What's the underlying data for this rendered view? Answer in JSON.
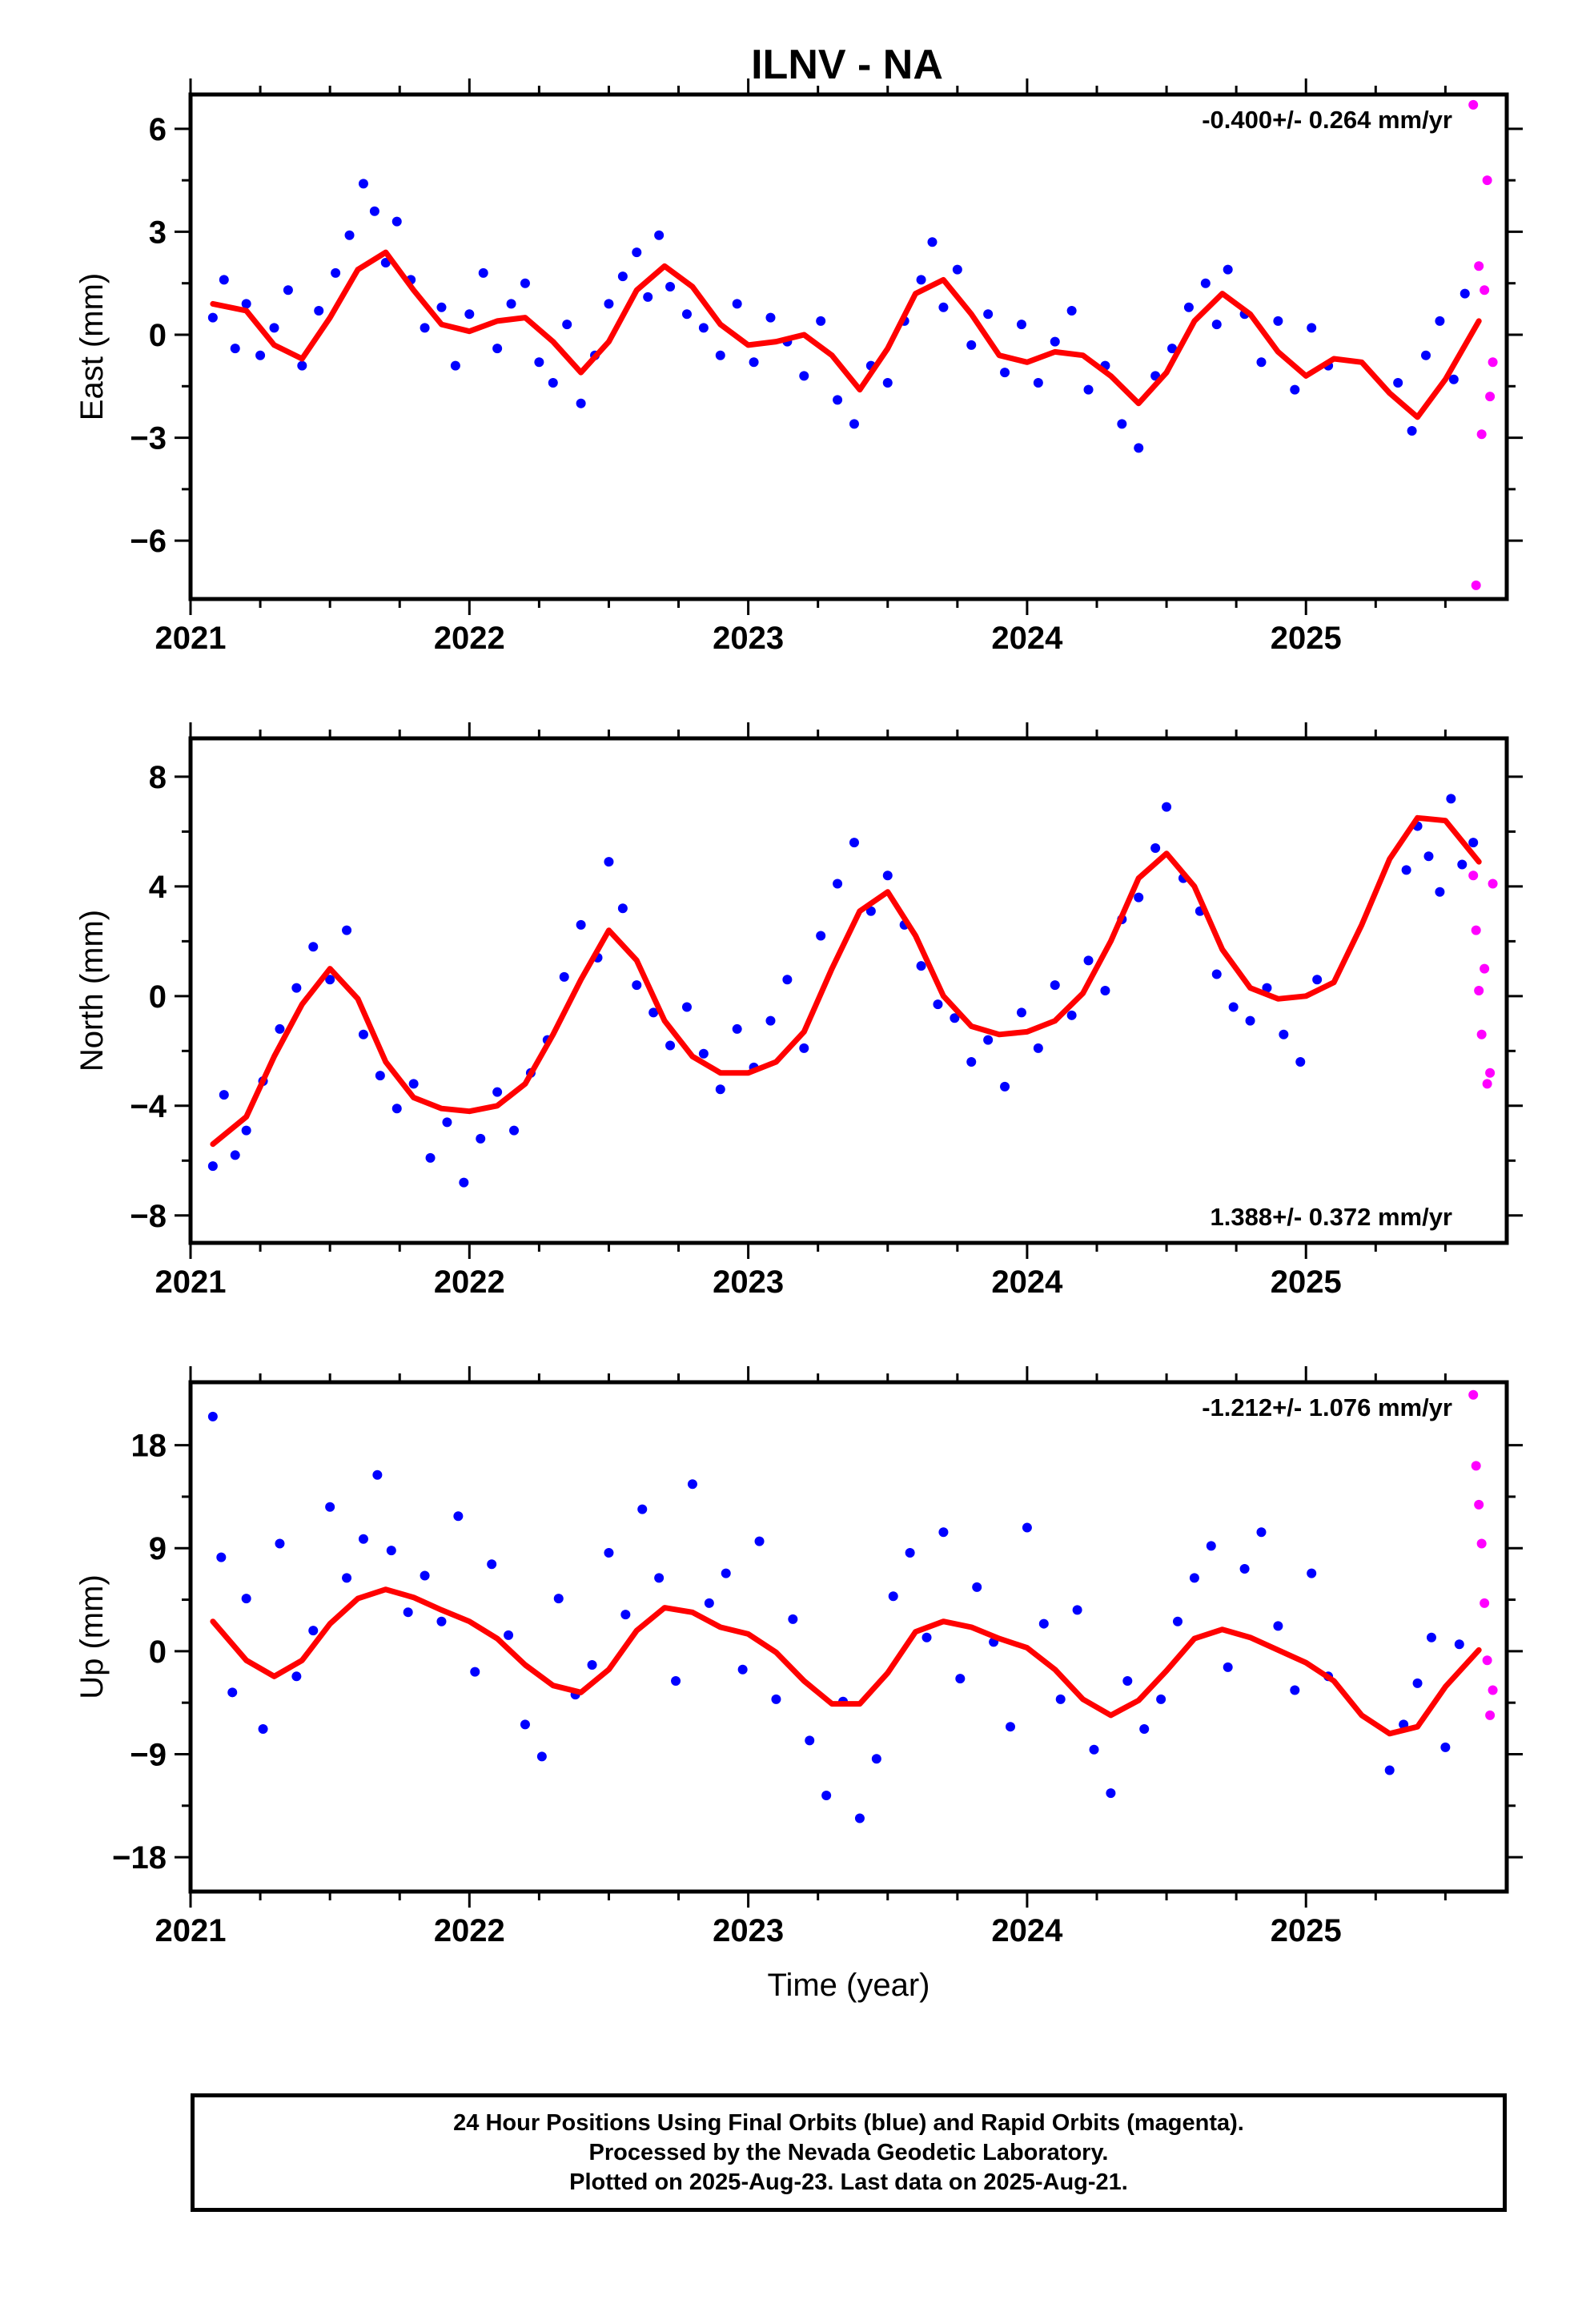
{
  "title": "ILNV - NA",
  "colors": {
    "final": "#0000ff",
    "rapid": "#ff00ff",
    "model": "#ff0000",
    "frame": "#000000"
  },
  "footer": {
    "line1": "24 Hour Positions Using Final Orbits (blue) and Rapid Orbits (magenta).",
    "line2": "Processed by the Nevada Geodetic Laboratory.",
    "line3": "Plotted on 2025-Aug-23. Last data on 2025-Aug-21."
  },
  "chart_data": [
    {
      "type": "scatter",
      "ylabel": "East (mm)",
      "xlabel": "",
      "rate_text": "-0.400+/- 0.264 mm/yr",
      "rate_position": "top-right",
      "xlim": [
        2021.0,
        2025.72
      ],
      "ylim": [
        -7.7,
        7.0
      ],
      "xticks": [
        2021,
        2022,
        2023,
        2024,
        2025
      ],
      "xtick_labels": [
        "2021",
        "2022",
        "2023",
        "2024",
        "2025"
      ],
      "yticks": [
        6,
        3,
        0,
        -3,
        -6
      ],
      "ytick_labels": [
        "6",
        "3",
        "0",
        "−3",
        "−6"
      ],
      "grid": false,
      "model": {
        "type": "line",
        "x": [
          2021.08,
          2021.2,
          2021.3,
          2021.4,
          2021.5,
          2021.6,
          2021.7,
          2021.8,
          2021.9,
          2022.0,
          2022.1,
          2022.2,
          2022.3,
          2022.4,
          2022.5,
          2022.6,
          2022.7,
          2022.8,
          2022.9,
          2023.0,
          2023.1,
          2023.2,
          2023.3,
          2023.4,
          2023.5,
          2023.6,
          2023.7,
          2023.8,
          2023.9,
          2024.0,
          2024.1,
          2024.2,
          2024.3,
          2024.4,
          2024.5,
          2024.6,
          2024.7,
          2024.8,
          2024.9,
          2025.0,
          2025.1,
          2025.2,
          2025.3,
          2025.4,
          2025.5,
          2025.62
        ],
        "y": [
          0.9,
          0.7,
          -0.3,
          -0.7,
          0.5,
          1.9,
          2.4,
          1.3,
          0.3,
          0.1,
          0.4,
          0.5,
          -0.2,
          -1.1,
          -0.2,
          1.3,
          2.0,
          1.4,
          0.3,
          -0.3,
          -0.2,
          0.0,
          -0.6,
          -1.6,
          -0.4,
          1.2,
          1.6,
          0.6,
          -0.6,
          -0.8,
          -0.5,
          -0.6,
          -1.2,
          -2.0,
          -1.1,
          0.4,
          1.2,
          0.6,
          -0.5,
          -1.2,
          -0.7,
          -0.8,
          -1.7,
          -2.4,
          -1.3,
          0.4
        ]
      },
      "final": {
        "x": [
          2021.08,
          2021.12,
          2021.16,
          2021.2,
          2021.25,
          2021.3,
          2021.35,
          2021.4,
          2021.46,
          2021.52,
          2021.57,
          2021.62,
          2021.66,
          2021.7,
          2021.74,
          2021.79,
          2021.84,
          2021.9,
          2021.95,
          2022.0,
          2022.05,
          2022.1,
          2022.15,
          2022.2,
          2022.25,
          2022.3,
          2022.35,
          2022.4,
          2022.45,
          2022.5,
          2022.55,
          2022.6,
          2022.64,
          2022.68,
          2022.72,
          2022.78,
          2022.84,
          2022.9,
          2022.96,
          2023.02,
          2023.08,
          2023.14,
          2023.2,
          2023.26,
          2023.32,
          2023.38,
          2023.44,
          2023.5,
          2023.56,
          2023.62,
          2023.66,
          2023.7,
          2023.75,
          2023.8,
          2023.86,
          2023.92,
          2023.98,
          2024.04,
          2024.1,
          2024.16,
          2024.22,
          2024.28,
          2024.34,
          2024.4,
          2024.46,
          2024.52,
          2024.58,
          2024.64,
          2024.68,
          2024.72,
          2024.78,
          2024.84,
          2024.9,
          2024.96,
          2025.02,
          2025.08,
          2025.33,
          2025.38,
          2025.43,
          2025.48,
          2025.53,
          2025.57
        ],
        "y": [
          0.5,
          1.6,
          -0.4,
          0.9,
          -0.6,
          0.2,
          1.3,
          -0.9,
          0.7,
          1.8,
          2.9,
          4.4,
          3.6,
          2.1,
          3.3,
          1.6,
          0.2,
          0.8,
          -0.9,
          0.6,
          1.8,
          -0.4,
          0.9,
          1.5,
          -0.8,
          -1.4,
          0.3,
          -2.0,
          -0.6,
          0.9,
          1.7,
          2.4,
          1.1,
          2.9,
          1.4,
          0.6,
          0.2,
          -0.6,
          0.9,
          -0.8,
          0.5,
          -0.2,
          -1.2,
          0.4,
          -1.9,
          -2.6,
          -0.9,
          -1.4,
          0.4,
          1.6,
          2.7,
          0.8,
          1.9,
          -0.3,
          0.6,
          -1.1,
          0.3,
          -1.4,
          -0.2,
          0.7,
          -1.6,
          -0.9,
          -2.6,
          -3.3,
          -1.2,
          -0.4,
          0.8,
          1.5,
          0.3,
          1.9,
          0.6,
          -0.8,
          0.4,
          -1.6,
          0.2,
          -0.9,
          -1.4,
          -2.8,
          -0.6,
          0.4,
          -1.3,
          1.2
        ]
      },
      "rapid": {
        "x": [
          2025.6,
          2025.61,
          2025.62,
          2025.63,
          2025.64,
          2025.65,
          2025.66,
          2025.67
        ],
        "y": [
          6.7,
          -7.3,
          2.0,
          -2.9,
          1.3,
          4.5,
          -1.8,
          -0.8
        ]
      }
    },
    {
      "type": "scatter",
      "ylabel": "North (mm)",
      "xlabel": "",
      "rate_text": "1.388+/- 0.372 mm/yr",
      "rate_position": "bottom-right",
      "xlim": [
        2021.0,
        2025.72
      ],
      "ylim": [
        -9.0,
        9.4
      ],
      "xticks": [
        2021,
        2022,
        2023,
        2024,
        2025
      ],
      "xtick_labels": [
        "2021",
        "2022",
        "2023",
        "2024",
        "2025"
      ],
      "yticks": [
        8,
        4,
        0,
        -4,
        -8
      ],
      "ytick_labels": [
        "8",
        "4",
        "0",
        "−4",
        "−8"
      ],
      "grid": false,
      "model": {
        "type": "line",
        "x": [
          2021.08,
          2021.2,
          2021.3,
          2021.4,
          2021.5,
          2021.6,
          2021.7,
          2021.8,
          2021.9,
          2022.0,
          2022.1,
          2022.2,
          2022.3,
          2022.4,
          2022.5,
          2022.6,
          2022.7,
          2022.8,
          2022.9,
          2023.0,
          2023.1,
          2023.2,
          2023.3,
          2023.4,
          2023.5,
          2023.6,
          2023.7,
          2023.8,
          2023.9,
          2024.0,
          2024.1,
          2024.2,
          2024.3,
          2024.4,
          2024.5,
          2024.6,
          2024.7,
          2024.8,
          2024.9,
          2025.0,
          2025.1,
          2025.2,
          2025.3,
          2025.4,
          2025.5,
          2025.62
        ],
        "y": [
          -5.4,
          -4.4,
          -2.2,
          -0.3,
          1.0,
          -0.1,
          -2.4,
          -3.7,
          -4.1,
          -4.2,
          -4.0,
          -3.2,
          -1.4,
          0.6,
          2.4,
          1.3,
          -0.9,
          -2.2,
          -2.8,
          -2.8,
          -2.4,
          -1.3,
          1.0,
          3.1,
          3.8,
          2.2,
          0.0,
          -1.1,
          -1.4,
          -1.3,
          -0.9,
          0.1,
          2.0,
          4.3,
          5.2,
          4.0,
          1.7,
          0.3,
          -0.1,
          0.0,
          0.5,
          2.6,
          5.0,
          6.5,
          6.4,
          4.9
        ]
      },
      "final": {
        "x": [
          2021.08,
          2021.12,
          2021.16,
          2021.2,
          2021.26,
          2021.32,
          2021.38,
          2021.44,
          2021.5,
          2021.56,
          2021.62,
          2021.68,
          2021.74,
          2021.8,
          2021.86,
          2021.92,
          2021.98,
          2022.04,
          2022.1,
          2022.16,
          2022.22,
          2022.28,
          2022.34,
          2022.4,
          2022.46,
          2022.5,
          2022.55,
          2022.6,
          2022.66,
          2022.72,
          2022.78,
          2022.84,
          2022.9,
          2022.96,
          2023.02,
          2023.08,
          2023.14,
          2023.2,
          2023.26,
          2023.32,
          2023.38,
          2023.44,
          2023.5,
          2023.56,
          2023.62,
          2023.68,
          2023.74,
          2023.8,
          2023.86,
          2023.92,
          2023.98,
          2024.04,
          2024.1,
          2024.16,
          2024.22,
          2024.28,
          2024.34,
          2024.4,
          2024.46,
          2024.5,
          2024.56,
          2024.62,
          2024.68,
          2024.74,
          2024.8,
          2024.86,
          2024.92,
          2024.98,
          2025.04,
          2025.36,
          2025.4,
          2025.44,
          2025.48,
          2025.52,
          2025.56,
          2025.6
        ],
        "y": [
          -6.2,
          -3.6,
          -5.8,
          -4.9,
          -3.1,
          -1.2,
          0.3,
          1.8,
          0.6,
          2.4,
          -1.4,
          -2.9,
          -4.1,
          -3.2,
          -5.9,
          -4.6,
          -6.8,
          -5.2,
          -3.5,
          -4.9,
          -2.8,
          -1.6,
          0.7,
          2.6,
          1.4,
          4.9,
          3.2,
          0.4,
          -0.6,
          -1.8,
          -0.4,
          -2.1,
          -3.4,
          -1.2,
          -2.6,
          -0.9,
          0.6,
          -1.9,
          2.2,
          4.1,
          5.6,
          3.1,
          4.4,
          2.6,
          1.1,
          -0.3,
          -0.8,
          -2.4,
          -1.6,
          -3.3,
          -0.6,
          -1.9,
          0.4,
          -0.7,
          1.3,
          0.2,
          2.8,
          3.6,
          5.4,
          6.9,
          4.3,
          3.1,
          0.8,
          -0.4,
          -0.9,
          0.3,
          -1.4,
          -2.4,
          0.6,
          4.6,
          6.2,
          5.1,
          3.8,
          7.2,
          4.8,
          5.6
        ]
      },
      "rapid": {
        "x": [
          2025.6,
          2025.61,
          2025.62,
          2025.63,
          2025.64,
          2025.65,
          2025.66,
          2025.67
        ],
        "y": [
          4.4,
          2.4,
          0.2,
          -1.4,
          1.0,
          -3.2,
          -2.8,
          4.1
        ]
      }
    },
    {
      "type": "scatter",
      "ylabel": "Up (mm)",
      "xlabel": "Time (year)",
      "rate_text": "-1.212+/- 1.076 mm/yr",
      "rate_position": "top-right",
      "xlim": [
        2021.0,
        2025.72
      ],
      "ylim": [
        -21.0,
        23.5
      ],
      "xticks": [
        2021,
        2022,
        2023,
        2024,
        2025
      ],
      "xtick_labels": [
        "2021",
        "2022",
        "2023",
        "2024",
        "2025"
      ],
      "yticks": [
        18,
        9,
        0,
        -9,
        -18
      ],
      "ytick_labels": [
        "18",
        "9",
        "0",
        "−9",
        "−18"
      ],
      "grid": false,
      "model": {
        "type": "line",
        "x": [
          2021.08,
          2021.2,
          2021.3,
          2021.4,
          2021.5,
          2021.6,
          2021.7,
          2021.8,
          2021.9,
          2022.0,
          2022.1,
          2022.2,
          2022.3,
          2022.4,
          2022.5,
          2022.6,
          2022.7,
          2022.8,
          2022.9,
          2023.0,
          2023.1,
          2023.2,
          2023.3,
          2023.4,
          2023.5,
          2023.6,
          2023.7,
          2023.8,
          2023.9,
          2024.0,
          2024.1,
          2024.2,
          2024.3,
          2024.4,
          2024.5,
          2024.6,
          2024.7,
          2024.8,
          2024.9,
          2025.0,
          2025.1,
          2025.2,
          2025.3,
          2025.4,
          2025.5,
          2025.62
        ],
        "y": [
          2.6,
          -0.8,
          -2.2,
          -0.8,
          2.4,
          4.6,
          5.4,
          4.7,
          3.6,
          2.6,
          1.1,
          -1.2,
          -3.0,
          -3.6,
          -1.6,
          1.8,
          3.8,
          3.4,
          2.1,
          1.5,
          -0.1,
          -2.6,
          -4.6,
          -4.6,
          -1.9,
          1.7,
          2.6,
          2.1,
          1.1,
          0.3,
          -1.6,
          -4.2,
          -5.6,
          -4.3,
          -1.7,
          1.1,
          1.9,
          1.2,
          0.1,
          -1.0,
          -2.6,
          -5.6,
          -7.2,
          -6.6,
          -3.1,
          0.1
        ]
      },
      "final": {
        "x": [
          2021.08,
          2021.11,
          2021.15,
          2021.2,
          2021.26,
          2021.32,
          2021.38,
          2021.44,
          2021.5,
          2021.56,
          2021.62,
          2021.67,
          2021.72,
          2021.78,
          2021.84,
          2021.9,
          2021.96,
          2022.02,
          2022.08,
          2022.14,
          2022.2,
          2022.26,
          2022.32,
          2022.38,
          2022.44,
          2022.5,
          2022.56,
          2022.62,
          2022.68,
          2022.74,
          2022.8,
          2022.86,
          2022.92,
          2022.98,
          2023.04,
          2023.1,
          2023.16,
          2023.22,
          2023.28,
          2023.34,
          2023.4,
          2023.46,
          2023.52,
          2023.58,
          2023.64,
          2023.7,
          2023.76,
          2023.82,
          2023.88,
          2023.94,
          2024.0,
          2024.06,
          2024.12,
          2024.18,
          2024.24,
          2024.3,
          2024.36,
          2024.42,
          2024.48,
          2024.54,
          2024.6,
          2024.66,
          2024.72,
          2024.78,
          2024.84,
          2024.9,
          2024.96,
          2025.02,
          2025.08,
          2025.3,
          2025.35,
          2025.4,
          2025.45,
          2025.5,
          2025.55
        ],
        "y": [
          20.5,
          8.2,
          -3.6,
          4.6,
          -6.8,
          9.4,
          -2.2,
          1.8,
          12.6,
          6.4,
          9.8,
          15.4,
          8.8,
          3.4,
          6.6,
          2.6,
          11.8,
          -1.8,
          7.6,
          1.4,
          -6.4,
          -9.2,
          4.6,
          -3.8,
          -1.2,
          8.6,
          3.2,
          12.4,
          6.4,
          -2.6,
          14.6,
          4.2,
          6.8,
          -1.6,
          9.6,
          -4.2,
          2.8,
          -7.8,
          -12.6,
          -4.4,
          -14.6,
          -9.4,
          4.8,
          8.6,
          1.2,
          10.4,
          -2.4,
          5.6,
          0.8,
          -6.6,
          10.8,
          2.4,
          -4.2,
          3.6,
          -8.6,
          -12.4,
          -2.6,
          -6.8,
          -4.2,
          2.6,
          6.4,
          9.2,
          -1.4,
          7.2,
          10.4,
          2.2,
          -3.4,
          6.8,
          -2.2,
          -10.4,
          -6.4,
          -2.8,
          1.2,
          -8.4,
          0.6
        ]
      },
      "rapid": {
        "x": [
          2025.6,
          2025.61,
          2025.62,
          2025.63,
          2025.64,
          2025.65,
          2025.66,
          2025.67
        ],
        "y": [
          22.4,
          16.2,
          12.8,
          9.4,
          4.2,
          -0.8,
          -5.6,
          -3.4
        ]
      }
    }
  ]
}
